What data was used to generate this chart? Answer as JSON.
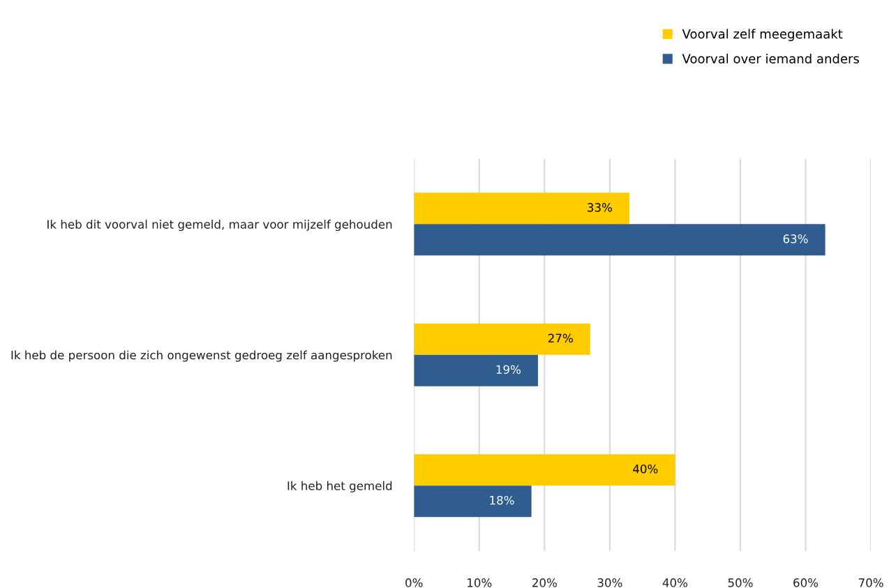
{
  "chart_data": {
    "type": "bar",
    "orientation": "horizontal",
    "categories": [
      "Ik heb dit voorval niet gemeld, maar voor mijzelf gehouden",
      "Ik heb de persoon die zich ongewenst gedroeg zelf aangesproken",
      "Ik heb het gemeld"
    ],
    "series": [
      {
        "name": "Voorval zelf meegemaakt",
        "color": "#ffcc00",
        "values": [
          33,
          27,
          40
        ],
        "value_labels": [
          "33%",
          "27%",
          "40%"
        ]
      },
      {
        "name": "Voorval over iemand anders",
        "color": "#2f5d8f",
        "values": [
          63,
          19,
          18
        ],
        "value_labels": [
          "63%",
          "19%",
          "18%"
        ]
      }
    ],
    "xlim": [
      0,
      70
    ],
    "xticks": [
      {
        "value": 0,
        "label": "0%"
      },
      {
        "value": 10,
        "label": "10%"
      },
      {
        "value": 20,
        "label": "20%"
      },
      {
        "value": 30,
        "label": "30%"
      },
      {
        "value": 40,
        "label": "40%"
      },
      {
        "value": 50,
        "label": "50%"
      },
      {
        "value": 60,
        "label": "60%"
      },
      {
        "value": 70,
        "label": "70%"
      }
    ],
    "grid": "x",
    "legend": "top right"
  }
}
